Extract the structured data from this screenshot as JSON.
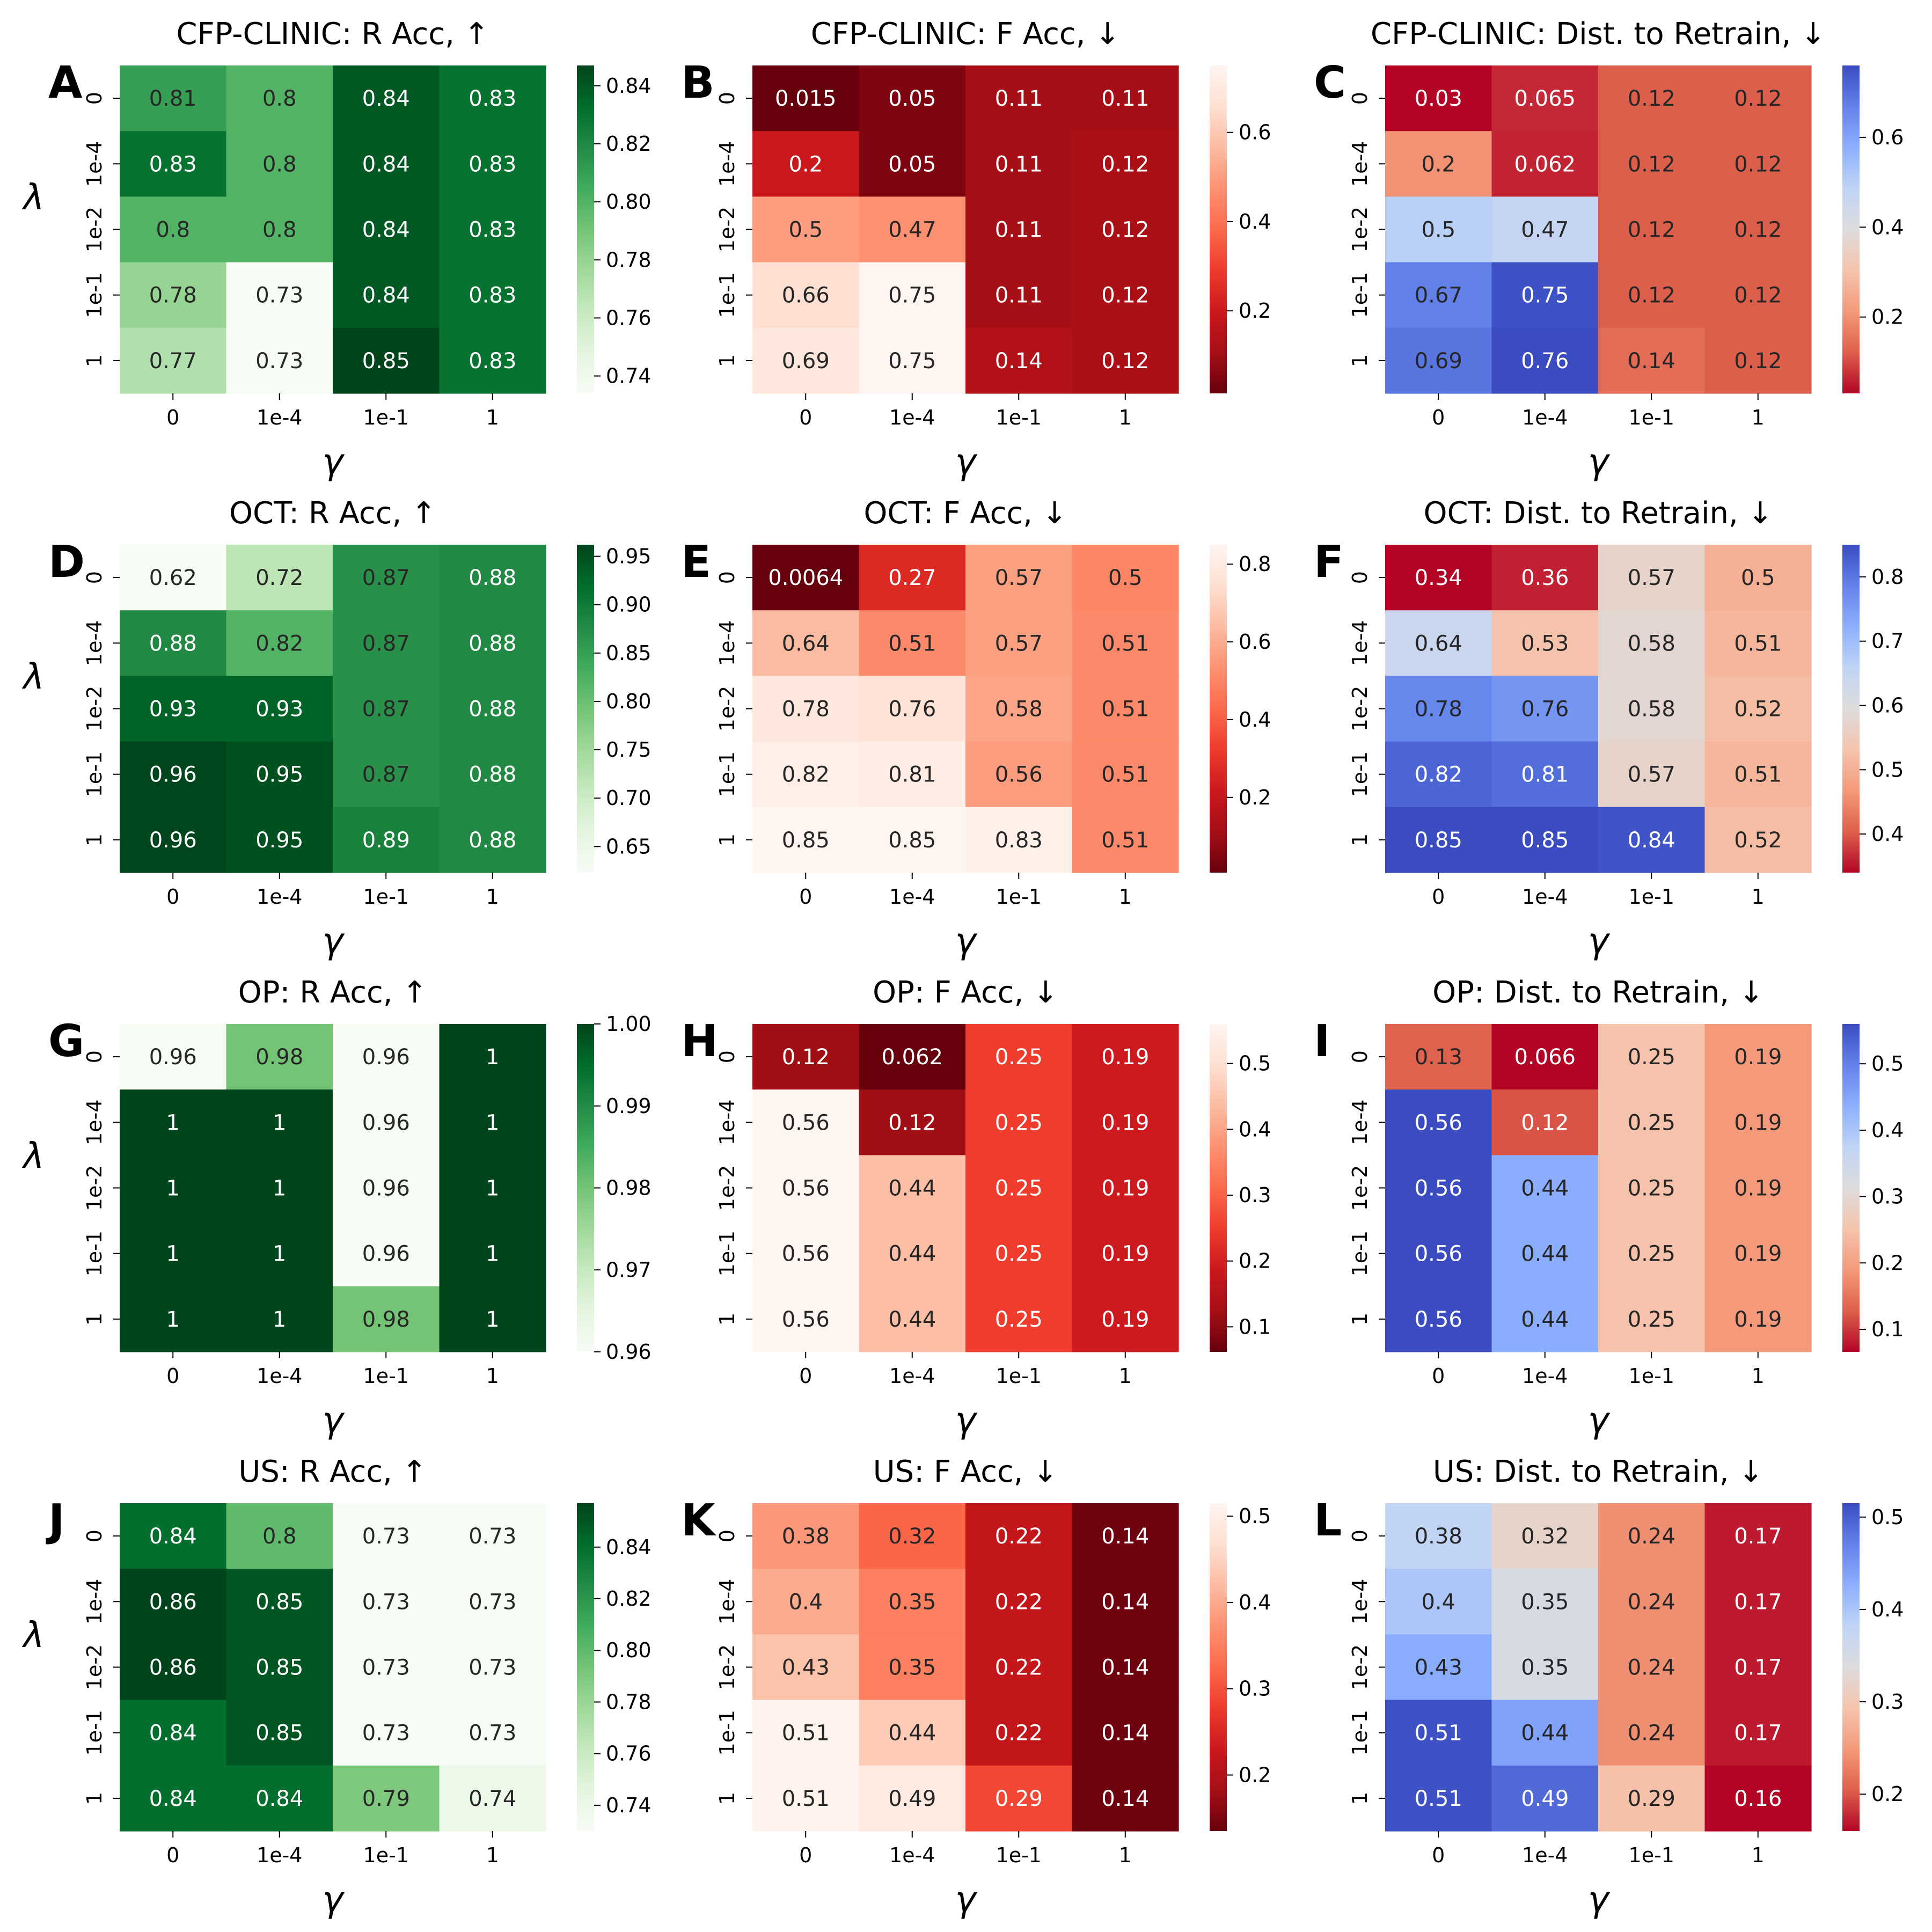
{
  "chart_data": [
    {
      "type": "heatmap",
      "panel": "A",
      "title": "CFP-CLINIC: R Acc,  ↑",
      "xlabel": "γ",
      "ylabel": "λ",
      "cmap": "greens",
      "x": [
        "0",
        "1e-4",
        "1e-1",
        "1"
      ],
      "y": [
        "0",
        "1e-4",
        "1e-2",
        "1e-1",
        "1"
      ],
      "values": [
        [
          0.81,
          0.8,
          0.84,
          0.83
        ],
        [
          0.83,
          0.8,
          0.84,
          0.83
        ],
        [
          0.8,
          0.8,
          0.84,
          0.83
        ],
        [
          0.78,
          0.73,
          0.84,
          0.83
        ],
        [
          0.77,
          0.73,
          0.85,
          0.83
        ]
      ],
      "labels": [
        [
          "0.81",
          "0.8",
          "0.84",
          "0.83"
        ],
        [
          "0.83",
          "0.8",
          "0.84",
          "0.83"
        ],
        [
          "0.8",
          "0.8",
          "0.84",
          "0.83"
        ],
        [
          "0.78",
          "0.73",
          "0.84",
          "0.83"
        ],
        [
          "0.77",
          "0.73",
          "0.85",
          "0.83"
        ]
      ],
      "crange": [
        0.734,
        0.847
      ],
      "cticks": [
        "0.74",
        "0.76",
        "0.78",
        "0.80",
        "0.82",
        "0.84"
      ]
    },
    {
      "type": "heatmap",
      "panel": "B",
      "title": "CFP-CLINIC: F Acc,  ↓",
      "xlabel": "γ",
      "ylabel": "",
      "cmap": "reds",
      "x": [
        "0",
        "1e-4",
        "1e-1",
        "1"
      ],
      "y": [
        "0",
        "1e-4",
        "1e-2",
        "1e-1",
        "1"
      ],
      "values": [
        [
          0.015,
          0.05,
          0.11,
          0.11
        ],
        [
          0.2,
          0.05,
          0.11,
          0.12
        ],
        [
          0.5,
          0.47,
          0.11,
          0.12
        ],
        [
          0.66,
          0.75,
          0.11,
          0.12
        ],
        [
          0.69,
          0.75,
          0.14,
          0.12
        ]
      ],
      "labels": [
        [
          "0.015",
          "0.05",
          "0.11",
          "0.11"
        ],
        [
          "0.2",
          "0.05",
          "0.11",
          "0.12"
        ],
        [
          "0.5",
          "0.47",
          "0.11",
          "0.12"
        ],
        [
          "0.66",
          "0.75",
          "0.11",
          "0.12"
        ],
        [
          "0.69",
          "0.75",
          "0.14",
          "0.12"
        ]
      ],
      "crange": [
        0.015,
        0.75
      ],
      "cticks": [
        "0.2",
        "0.4",
        "0.6"
      ]
    },
    {
      "type": "heatmap",
      "panel": "C",
      "title": "CFP-CLINIC: Dist. to Retrain,  ↓",
      "xlabel": "γ",
      "ylabel": "",
      "cmap": "coolwarm",
      "x": [
        "0",
        "1e-4",
        "1e-1",
        "1"
      ],
      "y": [
        "0",
        "1e-4",
        "1e-2",
        "1e-1",
        "1"
      ],
      "values": [
        [
          0.03,
          0.065,
          0.12,
          0.12
        ],
        [
          0.2,
          0.062,
          0.12,
          0.12
        ],
        [
          0.5,
          0.47,
          0.12,
          0.12
        ],
        [
          0.67,
          0.75,
          0.12,
          0.12
        ],
        [
          0.69,
          0.76,
          0.14,
          0.12
        ]
      ],
      "labels": [
        [
          "0.03",
          "0.065",
          "0.12",
          "0.12"
        ],
        [
          "0.2",
          "0.062",
          "0.12",
          "0.12"
        ],
        [
          "0.5",
          "0.47",
          "0.12",
          "0.12"
        ],
        [
          "0.67",
          "0.75",
          "0.12",
          "0.12"
        ],
        [
          "0.69",
          "0.76",
          "0.14",
          "0.12"
        ]
      ],
      "crange": [
        0.03,
        0.76
      ],
      "cticks": [
        "0.2",
        "0.4",
        "0.6"
      ]
    },
    {
      "type": "heatmap",
      "panel": "D",
      "title": "OCT: R Acc,  ↑",
      "xlabel": "γ",
      "ylabel": "λ",
      "cmap": "greens",
      "x": [
        "0",
        "1e-4",
        "1e-1",
        "1"
      ],
      "y": [
        "0",
        "1e-4",
        "1e-2",
        "1e-1",
        "1"
      ],
      "values": [
        [
          0.62,
          0.72,
          0.87,
          0.88
        ],
        [
          0.88,
          0.82,
          0.87,
          0.88
        ],
        [
          0.93,
          0.93,
          0.87,
          0.88
        ],
        [
          0.96,
          0.95,
          0.87,
          0.88
        ],
        [
          0.96,
          0.95,
          0.89,
          0.88
        ]
      ],
      "labels": [
        [
          "0.62",
          "0.72",
          "0.87",
          "0.88"
        ],
        [
          "0.88",
          "0.82",
          "0.87",
          "0.88"
        ],
        [
          "0.93",
          "0.93",
          "0.87",
          "0.88"
        ],
        [
          "0.96",
          "0.95",
          "0.87",
          "0.88"
        ],
        [
          "0.96",
          "0.95",
          "0.89",
          "0.88"
        ]
      ],
      "crange": [
        0.623,
        0.962
      ],
      "cticks": [
        "0.65",
        "0.70",
        "0.75",
        "0.80",
        "0.85",
        "0.90",
        "0.95"
      ]
    },
    {
      "type": "heatmap",
      "panel": "E",
      "title": "OCT: F Acc,  ↓",
      "xlabel": "γ",
      "ylabel": "",
      "cmap": "reds",
      "x": [
        "0",
        "1e-4",
        "1e-1",
        "1"
      ],
      "y": [
        "0",
        "1e-4",
        "1e-2",
        "1e-1",
        "1"
      ],
      "values": [
        [
          0.0064,
          0.27,
          0.57,
          0.5
        ],
        [
          0.64,
          0.51,
          0.57,
          0.51
        ],
        [
          0.78,
          0.76,
          0.58,
          0.51
        ],
        [
          0.82,
          0.81,
          0.56,
          0.51
        ],
        [
          0.85,
          0.85,
          0.83,
          0.51
        ]
      ],
      "labels": [
        [
          "0.0064",
          "0.27",
          "0.57",
          "0.5"
        ],
        [
          "0.64",
          "0.51",
          "0.57",
          "0.51"
        ],
        [
          "0.78",
          "0.76",
          "0.58",
          "0.51"
        ],
        [
          "0.82",
          "0.81",
          "0.56",
          "0.51"
        ],
        [
          "0.85",
          "0.85",
          "0.83",
          "0.51"
        ]
      ],
      "crange": [
        0.0064,
        0.85
      ],
      "cticks": [
        "0.2",
        "0.4",
        "0.6",
        "0.8"
      ]
    },
    {
      "type": "heatmap",
      "panel": "F",
      "title": "OCT: Dist. to Retrain,  ↓",
      "xlabel": "γ",
      "ylabel": "",
      "cmap": "coolwarm",
      "x": [
        "0",
        "1e-4",
        "1e-1",
        "1"
      ],
      "y": [
        "0",
        "1e-4",
        "1e-2",
        "1e-1",
        "1"
      ],
      "values": [
        [
          0.34,
          0.36,
          0.57,
          0.5
        ],
        [
          0.64,
          0.53,
          0.58,
          0.51
        ],
        [
          0.78,
          0.76,
          0.58,
          0.52
        ],
        [
          0.82,
          0.81,
          0.57,
          0.51
        ],
        [
          0.85,
          0.85,
          0.84,
          0.52
        ]
      ],
      "labels": [
        [
          "0.34",
          "0.36",
          "0.57",
          "0.5"
        ],
        [
          "0.64",
          "0.53",
          "0.58",
          "0.51"
        ],
        [
          "0.78",
          "0.76",
          "0.58",
          "0.52"
        ],
        [
          "0.82",
          "0.81",
          "0.57",
          "0.51"
        ],
        [
          "0.85",
          "0.85",
          "0.84",
          "0.52"
        ]
      ],
      "crange": [
        0.34,
        0.85
      ],
      "cticks": [
        "0.4",
        "0.5",
        "0.6",
        "0.7",
        "0.8"
      ]
    },
    {
      "type": "heatmap",
      "panel": "G",
      "title": "OP: R Acc,  ↑",
      "xlabel": "γ",
      "ylabel": "λ",
      "cmap": "greens",
      "x": [
        "0",
        "1e-4",
        "1e-1",
        "1"
      ],
      "y": [
        "0",
        "1e-4",
        "1e-2",
        "1e-1",
        "1"
      ],
      "values": [
        [
          0.96,
          0.98,
          0.96,
          1
        ],
        [
          1,
          1,
          0.96,
          1
        ],
        [
          1,
          1,
          0.96,
          1
        ],
        [
          1,
          1,
          0.96,
          1
        ],
        [
          1,
          1,
          0.98,
          1
        ]
      ],
      "labels": [
        [
          "0.96",
          "0.98",
          "0.96",
          "1"
        ],
        [
          "1",
          "1",
          "0.96",
          "1"
        ],
        [
          "1",
          "1",
          "0.96",
          "1"
        ],
        [
          "1",
          "1",
          "0.96",
          "1"
        ],
        [
          "1",
          "1",
          "0.98",
          "1"
        ]
      ],
      "crange": [
        0.96,
        1.0
      ],
      "cticks": [
        "0.96",
        "0.97",
        "0.98",
        "0.99",
        "1.00"
      ]
    },
    {
      "type": "heatmap",
      "panel": "H",
      "title": "OP: F Acc,  ↓",
      "xlabel": "γ",
      "ylabel": "",
      "cmap": "reds",
      "x": [
        "0",
        "1e-4",
        "1e-1",
        "1"
      ],
      "y": [
        "0",
        "1e-4",
        "1e-2",
        "1e-1",
        "1"
      ],
      "values": [
        [
          0.12,
          0.062,
          0.25,
          0.19
        ],
        [
          0.56,
          0.12,
          0.25,
          0.19
        ],
        [
          0.56,
          0.44,
          0.25,
          0.19
        ],
        [
          0.56,
          0.44,
          0.25,
          0.19
        ],
        [
          0.56,
          0.44,
          0.25,
          0.19
        ]
      ],
      "labels": [
        [
          "0.12",
          "0.062",
          "0.25",
          "0.19"
        ],
        [
          "0.56",
          "0.12",
          "0.25",
          "0.19"
        ],
        [
          "0.56",
          "0.44",
          "0.25",
          "0.19"
        ],
        [
          "0.56",
          "0.44",
          "0.25",
          "0.19"
        ],
        [
          "0.56",
          "0.44",
          "0.25",
          "0.19"
        ]
      ],
      "crange": [
        0.062,
        0.56
      ],
      "cticks": [
        "0.1",
        "0.2",
        "0.3",
        "0.4",
        "0.5"
      ]
    },
    {
      "type": "heatmap",
      "panel": "I",
      "title": "OP: Dist. to Retrain,  ↓",
      "xlabel": "γ",
      "ylabel": "",
      "cmap": "coolwarm",
      "x": [
        "0",
        "1e-4",
        "1e-1",
        "1"
      ],
      "y": [
        "0",
        "1e-4",
        "1e-2",
        "1e-1",
        "1"
      ],
      "values": [
        [
          0.13,
          0.066,
          0.25,
          0.19
        ],
        [
          0.56,
          0.12,
          0.25,
          0.19
        ],
        [
          0.56,
          0.44,
          0.25,
          0.19
        ],
        [
          0.56,
          0.44,
          0.25,
          0.19
        ],
        [
          0.56,
          0.44,
          0.25,
          0.19
        ]
      ],
      "labels": [
        [
          "0.13",
          "0.066",
          "0.25",
          "0.19"
        ],
        [
          "0.56",
          "0.12",
          "0.25",
          "0.19"
        ],
        [
          "0.56",
          "0.44",
          "0.25",
          "0.19"
        ],
        [
          "0.56",
          "0.44",
          "0.25",
          "0.19"
        ],
        [
          "0.56",
          "0.44",
          "0.25",
          "0.19"
        ]
      ],
      "crange": [
        0.066,
        0.56
      ],
      "cticks": [
        "0.1",
        "0.2",
        "0.3",
        "0.4",
        "0.5"
      ]
    },
    {
      "type": "heatmap",
      "panel": "J",
      "title": "US: R Acc,  ↑",
      "xlabel": "γ",
      "ylabel": "λ",
      "cmap": "greens",
      "x": [
        "0",
        "1e-4",
        "1e-1",
        "1"
      ],
      "y": [
        "0",
        "1e-4",
        "1e-2",
        "1e-1",
        "1"
      ],
      "values": [
        [
          0.84,
          0.8,
          0.73,
          0.73
        ],
        [
          0.86,
          0.85,
          0.73,
          0.73
        ],
        [
          0.86,
          0.85,
          0.73,
          0.73
        ],
        [
          0.84,
          0.85,
          0.73,
          0.73
        ],
        [
          0.84,
          0.84,
          0.79,
          0.74
        ]
      ],
      "labels": [
        [
          "0.84",
          "0.8",
          "0.73",
          "0.73"
        ],
        [
          "0.86",
          "0.85",
          "0.73",
          "0.73"
        ],
        [
          "0.86",
          "0.85",
          "0.73",
          "0.73"
        ],
        [
          "0.84",
          "0.85",
          "0.73",
          "0.73"
        ],
        [
          "0.84",
          "0.84",
          "0.79",
          "0.74"
        ]
      ],
      "crange": [
        0.73,
        0.857
      ],
      "cticks": [
        "0.74",
        "0.76",
        "0.78",
        "0.80",
        "0.82",
        "0.84"
      ]
    },
    {
      "type": "heatmap",
      "panel": "K",
      "title": "US: F Acc,  ↓",
      "xlabel": "γ",
      "ylabel": "",
      "cmap": "reds",
      "x": [
        "0",
        "1e-4",
        "1e-1",
        "1"
      ],
      "y": [
        "0",
        "1e-4",
        "1e-2",
        "1e-1",
        "1"
      ],
      "values": [
        [
          0.38,
          0.32,
          0.22,
          0.14
        ],
        [
          0.4,
          0.35,
          0.22,
          0.14
        ],
        [
          0.43,
          0.35,
          0.22,
          0.14
        ],
        [
          0.51,
          0.44,
          0.22,
          0.14
        ],
        [
          0.51,
          0.49,
          0.29,
          0.14
        ]
      ],
      "labels": [
        [
          "0.38",
          "0.32",
          "0.22",
          "0.14"
        ],
        [
          "0.4",
          "0.35",
          "0.22",
          "0.14"
        ],
        [
          "0.43",
          "0.35",
          "0.22",
          "0.14"
        ],
        [
          "0.51",
          "0.44",
          "0.22",
          "0.14"
        ],
        [
          "0.51",
          "0.49",
          "0.29",
          "0.14"
        ]
      ],
      "crange": [
        0.135,
        0.515
      ],
      "cticks": [
        "0.2",
        "0.3",
        "0.4",
        "0.5"
      ]
    },
    {
      "type": "heatmap",
      "panel": "L",
      "title": "US: Dist. to Retrain,  ↓",
      "xlabel": "γ",
      "ylabel": "",
      "cmap": "coolwarm",
      "x": [
        "0",
        "1e-4",
        "1e-1",
        "1"
      ],
      "y": [
        "0",
        "1e-4",
        "1e-2",
        "1e-1",
        "1"
      ],
      "values": [
        [
          0.38,
          0.32,
          0.24,
          0.17
        ],
        [
          0.4,
          0.35,
          0.24,
          0.17
        ],
        [
          0.43,
          0.35,
          0.24,
          0.17
        ],
        [
          0.51,
          0.44,
          0.24,
          0.17
        ],
        [
          0.51,
          0.49,
          0.29,
          0.16
        ]
      ],
      "labels": [
        [
          "0.38",
          "0.32",
          "0.24",
          "0.17"
        ],
        [
          "0.4",
          "0.35",
          "0.24",
          "0.17"
        ],
        [
          "0.43",
          "0.35",
          "0.24",
          "0.17"
        ],
        [
          "0.51",
          "0.44",
          "0.24",
          "0.17"
        ],
        [
          "0.51",
          "0.49",
          "0.29",
          "0.16"
        ]
      ],
      "crange": [
        0.16,
        0.515
      ],
      "cticks": [
        "0.2",
        "0.3",
        "0.4",
        "0.5"
      ]
    }
  ]
}
